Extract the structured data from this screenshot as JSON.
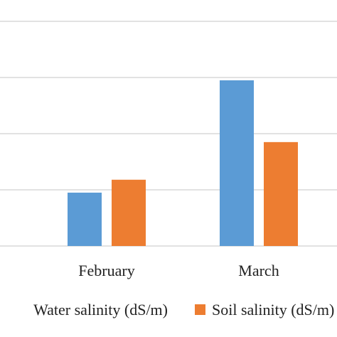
{
  "chart_data": {
    "type": "bar",
    "categories": [
      "February",
      "March"
    ],
    "series": [
      {
        "name": "Water salinity (dS/m)",
        "values": [
          0.95,
          2.95
        ],
        "color": "#5B9BD5"
      },
      {
        "name": "Soil salinity (dS/m)",
        "values": [
          1.18,
          1.85
        ],
        "color": "#ED7D31"
      }
    ],
    "ylim": [
      0,
      4
    ],
    "grid": true,
    "legend_position": "bottom"
  }
}
